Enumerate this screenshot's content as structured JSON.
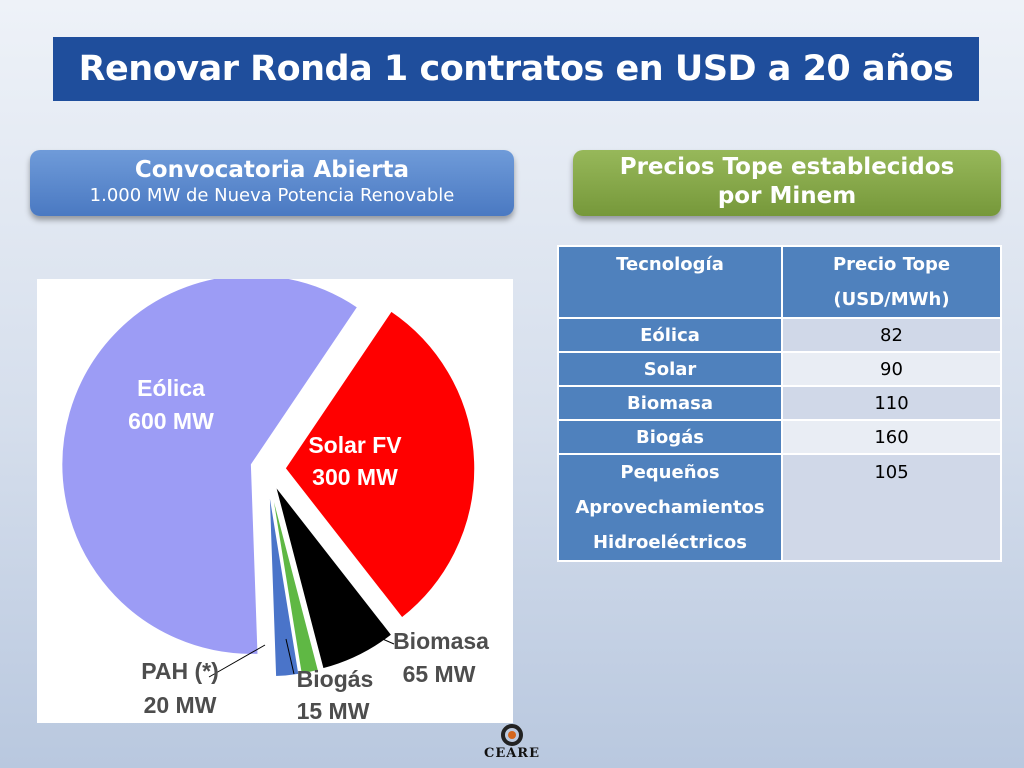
{
  "title": "Renovar Ronda 1 contratos en USD a 20 años",
  "convocatoria": {
    "title": "Convocatoria Abierta",
    "subtitle": "1.000 MW de Nueva Potencia Renovable"
  },
  "precios_header": {
    "line1": "Precios Tope establecidos",
    "line2": "por Minem"
  },
  "colors": {
    "eolica": "#9c9cf5",
    "solar": "#ff0000",
    "biomasa": "#000000",
    "biogas": "#5fb844",
    "pah": "#4a74c9",
    "title_bar": "#1f4e9c",
    "table_header": "#4f81bd"
  },
  "chart_data": {
    "type": "pie",
    "title": "",
    "unit": "MW",
    "slices": [
      {
        "label": "Eólica",
        "value_label": "600 MW",
        "value": 600,
        "color": "#9c9cf5"
      },
      {
        "label": "Solar FV",
        "value_label": "300 MW",
        "value": 300,
        "color": "#ff0000"
      },
      {
        "label": "Biomasa",
        "value_label": "65 MW",
        "value": 65,
        "color": "#000000"
      },
      {
        "label": "Biogás",
        "value_label": "15 MW",
        "value": 15,
        "color": "#5fb844"
      },
      {
        "label": "PAH (*)",
        "value_label": "20 MW",
        "value": 20,
        "color": "#4a74c9"
      }
    ]
  },
  "table": {
    "headers": [
      "Tecnología",
      "Precio Tope",
      "(USD/MWh)"
    ],
    "rows": [
      {
        "tech": "Eólica",
        "price": "82"
      },
      {
        "tech": "Solar",
        "price": "90"
      },
      {
        "tech": "Biomasa",
        "price": "110"
      },
      {
        "tech": "Biogás",
        "price": "160"
      },
      {
        "tech": [
          "Pequeños",
          "Aprovechamientos",
          "Hidroeléctricos"
        ],
        "price": "105"
      }
    ]
  },
  "logo": {
    "text": "CEARE",
    "icon": "ceare-ring-icon"
  }
}
